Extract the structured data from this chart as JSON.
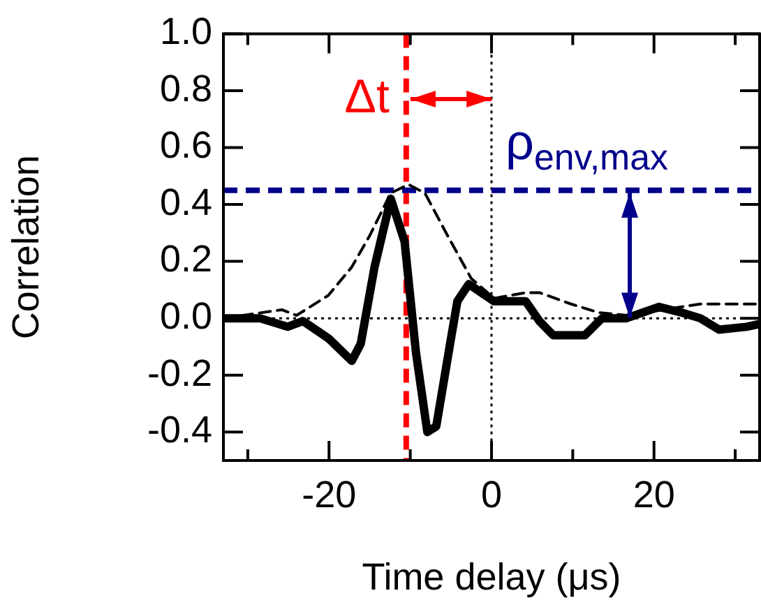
{
  "chart_data": {
    "type": "line",
    "xlabel": "Time delay (μs)",
    "ylabel": "Correlation",
    "xlim": [
      -33,
      33
    ],
    "xticks": [
      {
        "value": -30,
        "label": null
      },
      {
        "value": -20,
        "label": "-20"
      },
      {
        "value": -10,
        "label": null
      },
      {
        "value": 0,
        "label": "0"
      },
      {
        "value": 10,
        "label": null
      },
      {
        "value": 20,
        "label": "20"
      },
      {
        "value": 30,
        "label": null
      }
    ],
    "ylim": [
      -0.5,
      1.0
    ],
    "yticks": [
      -0.4,
      -0.2,
      {
        "value": 0,
        "label": "0.0"
      },
      0.2,
      0.4,
      0.6,
      0.8,
      {
        "value": 1,
        "label": "1.0"
      }
    ],
    "grid": false,
    "legend": false,
    "marker": "none",
    "series": [
      {
        "color": "#000000",
        "line_style": "solid",
        "x": [
          -33,
          -28.5,
          -25.1,
          -23.2,
          -20.1,
          -17.2,
          -16.1,
          -14.4,
          -12.4,
          -10.7,
          -9.3,
          -7.9,
          -6.8,
          -5.1,
          -4.2,
          -2.8,
          0.3,
          3.1,
          4.2,
          5.9,
          7.6,
          11.5,
          13.6,
          16.6,
          20.6,
          23.4,
          25.7,
          28,
          31.4,
          33
        ],
        "values": [
          0.0,
          0.0,
          -0.03,
          -0.01,
          -0.07,
          -0.15,
          -0.09,
          0.18,
          0.42,
          0.27,
          -0.12,
          -0.4,
          -0.38,
          -0.09,
          0.06,
          0.12,
          0.06,
          0.06,
          0.06,
          -0.01,
          -0.06,
          -0.06,
          0.0,
          0.0,
          0.04,
          0.02,
          0.0,
          -0.04,
          -0.03,
          -0.02
        ]
      },
      {
        "color": "#000000",
        "line_style": "dashed",
        "x": [
          -33,
          -25.8,
          -24,
          -20.1,
          -17.2,
          -15,
          -12.4,
          -10.2,
          -8.2,
          -5.4,
          -2.5,
          0.3,
          4.2,
          5.9,
          9.8,
          13.2,
          16.6,
          25.7,
          33
        ],
        "values": [
          0.0,
          0.03,
          0.01,
          0.08,
          0.18,
          0.29,
          0.44,
          0.47,
          0.44,
          0.29,
          0.14,
          0.07,
          0.09,
          0.09,
          0.05,
          0.02,
          0.01,
          0.05,
          0.05
        ]
      }
    ],
    "ref_lines": [
      {
        "axis": "y",
        "value": 0,
        "color": "#000000",
        "line_style": "dotted"
      },
      {
        "axis": "x",
        "value": 0,
        "color": "#000000",
        "line_style": "dotted"
      },
      {
        "axis": "x",
        "value": -10.5,
        "color": "#ff0000",
        "line_style": "dashed"
      },
      {
        "axis": "y",
        "value": 0.45,
        "color": "#00008b",
        "line_style": "dashed"
      }
    ],
    "annotations": [
      {
        "text": "Δt",
        "x": 0,
        "y": 0.77
      },
      {
        "text": "ρ$_{env,max}$",
        "x": 17,
        "y": 0.45
      }
    ]
  }
}
